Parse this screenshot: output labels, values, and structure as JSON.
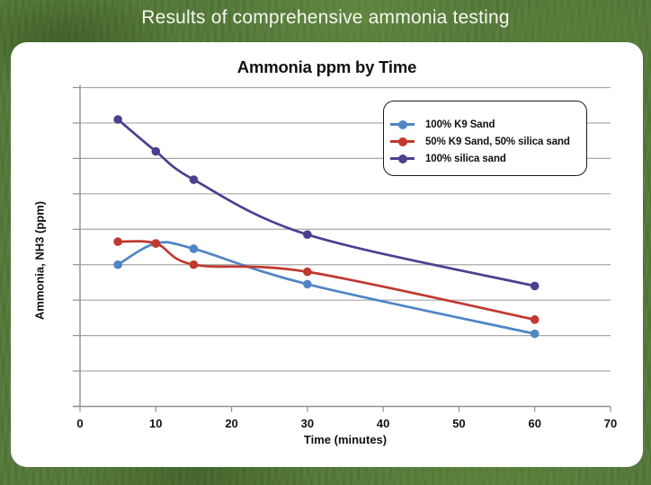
{
  "header": {
    "title": "Results of comprehensive ammonia testing"
  },
  "colors": {
    "background_green": "#55793a",
    "panel": "#ffffff",
    "gridline": "#a6a6a6",
    "axis": "#8f8f8f",
    "text": "#111111",
    "header_text": "#f6f6ef"
  },
  "chart_data": {
    "type": "line",
    "title": "Ammonia ppm by Time",
    "xlabel": "Time (minutes)",
    "ylabel": "Ammonia, NH3 (ppm)",
    "line_style": "smooth",
    "grid": "horizontal",
    "legend_position": "top-right-inside",
    "x": [
      5,
      10,
      15,
      30,
      60
    ],
    "x_ticks": [
      "0",
      "10",
      "20",
      "30",
      "40",
      "50",
      "60",
      "70"
    ],
    "xlim": [
      0,
      70
    ],
    "ylim": [
      0,
      9
    ],
    "y_tick_labels_shown": false,
    "y_gridline_count": 9,
    "y_unit_note": "y scale unlabeled; values estimated in gridline units (axis = 0, one unit per gridline)",
    "series": [
      {
        "name": "100% K9 Sand",
        "color": "#4e85c5",
        "values": [
          4.0,
          4.6,
          4.45,
          3.45,
          2.05
        ]
      },
      {
        "name": "50% K9 Sand, 50% silica sand",
        "color": "#c0392e",
        "values": [
          4.65,
          4.6,
          4.0,
          3.8,
          2.45
        ]
      },
      {
        "name": "100% silica sand",
        "color": "#49418f",
        "values": [
          8.1,
          7.2,
          6.4,
          4.85,
          3.4
        ]
      }
    ]
  }
}
